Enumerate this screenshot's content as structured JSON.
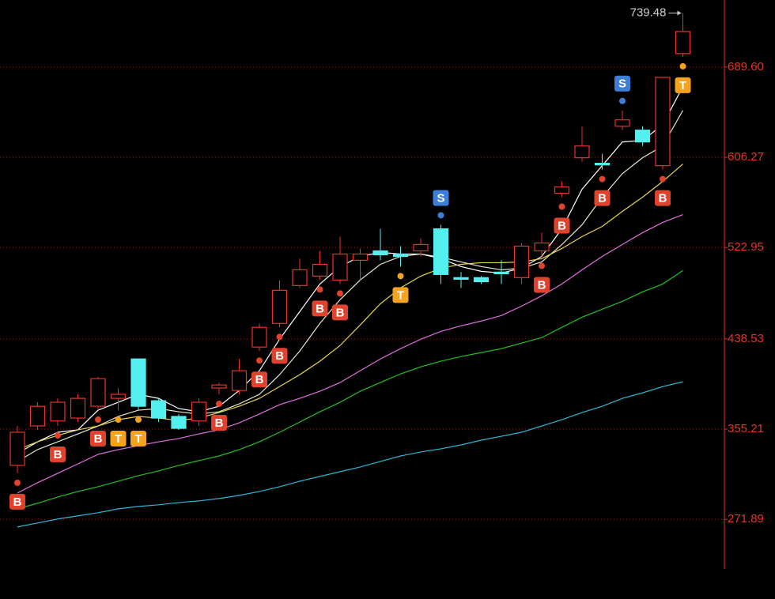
{
  "chart_data": {
    "type": "candlestick",
    "open": [
      321.7,
      358.1,
      362.7,
      365.4,
      376.3,
      383.6,
      420.0,
      381.4,
      366.9,
      362.7,
      393.1,
      390.9,
      431.0,
      452.8,
      487.8,
      496.5,
      492.9,
      511.1,
      519.8,
      516.9,
      519.8,
      540.2,
      495.1,
      495.1,
      500.2,
      495.1,
      519.8,
      573.0,
      605.8,
      600.7,
      634.9,
      631.3,
      598.5,
      702.0
    ],
    "high": [
      358.1,
      380.0,
      383.6,
      387.3,
      403.3,
      393.1,
      420.0,
      383.6,
      369.1,
      383.6,
      398.0,
      420.0,
      452.8,
      492.7,
      512.6,
      519.8,
      533.0,
      522.0,
      540.2,
      524.2,
      531.5,
      543.9,
      500.3,
      496.5,
      511.1,
      526.9,
      536.6,
      584.0,
      634.9,
      609.5,
      649.5,
      634.9,
      680.1,
      739.48
    ],
    "low": [
      314.4,
      354.5,
      358.1,
      361.8,
      372.7,
      372.7,
      372.7,
      361.8,
      354.5,
      358.1,
      387.3,
      387.3,
      427.3,
      449.2,
      485.6,
      492.9,
      489.2,
      492.9,
      511.1,
      505.3,
      514.7,
      489.2,
      485.6,
      489.2,
      489.2,
      489.2,
      514.7,
      569.4,
      602.2,
      594.9,
      631.3,
      616.7,
      594.9,
      699.0
    ],
    "close": [
      352.3,
      376.3,
      380.0,
      383.6,
      401.8,
      387.3,
      376.3,
      365.4,
      355.9,
      380.0,
      396.0,
      409.1,
      449.2,
      483.4,
      502.4,
      507.4,
      516.9,
      516.9,
      516.2,
      514.7,
      525.7,
      498.0,
      493.6,
      491.4,
      498.7,
      524.2,
      527.1,
      578.8,
      616.7,
      599.2,
      640.8,
      620.4,
      680.1,
      722.4
    ],
    "up_color": "#e8322a",
    "down_color": "#54f0f0",
    "signals": [
      "B",
      null,
      "B",
      null,
      "B",
      "T",
      "T",
      null,
      null,
      null,
      "B",
      null,
      "B",
      "B",
      null,
      "B",
      "B",
      null,
      null,
      "T",
      null,
      "S",
      null,
      null,
      null,
      null,
      "B",
      "B",
      null,
      "B",
      "S",
      null,
      "B",
      "T"
    ],
    "signal_colors": {
      "B": "#e0432d",
      "T": "#f5a31e",
      "S": "#3d7fd6"
    },
    "lines": [
      {
        "color": "#ffffff",
        "values": [
          332.7,
          343.5,
          352.3,
          354.5,
          372.7,
          380.0,
          387.3,
          383.6,
          374.2,
          371.2,
          376.3,
          390.9,
          409.1,
          438.2,
          463.7,
          489.2,
          505.3,
          514.7,
          518.4,
          516.9,
          516.9,
          512.6,
          505.3,
          500.9,
          499.4,
          503.8,
          514.7,
          540.2,
          576.7,
          598.5,
          620.4,
          621.8,
          636.4,
          671.4
        ]
      },
      {
        "color": "#e8e8d0",
        "values": [
          325.3,
          336.3,
          343.5,
          350.8,
          358.1,
          366.9,
          372.7,
          374.2,
          371.2,
          369.1,
          371.2,
          378.5,
          387.3,
          405.5,
          427.3,
          452.8,
          474.7,
          492.9,
          507.4,
          514.7,
          516.9,
          514.0,
          509.6,
          505.3,
          502.3,
          503.8,
          509.6,
          525.7,
          543.9,
          569.4,
          591.2,
          605.8,
          616.7,
          649.5
        ]
      },
      {
        "color": "#e8d84a",
        "values": [
          336.3,
          343.5,
          349.4,
          354.5,
          358.1,
          363.9,
          366.9,
          365.4,
          363.2,
          365.4,
          370.5,
          376.3,
          383.6,
          394.5,
          405.5,
          417.9,
          432.4,
          451.4,
          471.0,
          485.6,
          496.5,
          503.8,
          507.4,
          508.9,
          508.9,
          509.6,
          512.6,
          522.0,
          533.0,
          542.4,
          556.3,
          569.4,
          583.9,
          600.0
        ]
      },
      {
        "color": "#e070e0",
        "values": [
          296.2,
          305.7,
          314.4,
          323.1,
          331.9,
          336.3,
          339.9,
          343.5,
          346.5,
          350.8,
          354.5,
          361.0,
          369.1,
          377.8,
          383.6,
          390.2,
          398.2,
          409.1,
          420.0,
          429.5,
          438.2,
          445.5,
          450.6,
          455.0,
          460.1,
          468.8,
          478.3,
          489.2,
          502.3,
          514.7,
          525.7,
          536.6,
          546.1,
          553.3
        ]
      },
      {
        "color": "#22c022",
        "values": [
          281.6,
          286.7,
          292.5,
          297.6,
          302.0,
          307.1,
          312.2,
          316.6,
          321.7,
          326.1,
          330.4,
          336.3,
          343.5,
          352.3,
          361.7,
          371.2,
          380.0,
          390.2,
          398.2,
          406.2,
          412.7,
          417.9,
          422.2,
          425.9,
          429.5,
          434.6,
          439.7,
          449.2,
          458.6,
          465.9,
          473.2,
          482.0,
          489.2,
          501.6
        ]
      },
      {
        "color": "#2ab8d8",
        "values": [
          264.9,
          268.5,
          272.2,
          275.1,
          278.0,
          281.6,
          283.8,
          285.3,
          287.4,
          288.9,
          291.1,
          294.0,
          297.6,
          302.0,
          307.1,
          311.5,
          315.9,
          320.2,
          325.3,
          330.4,
          334.1,
          337.0,
          340.6,
          345.0,
          348.6,
          352.3,
          358.1,
          363.9,
          370.5,
          376.3,
          383.6,
          388.7,
          394.5,
          398.9
        ]
      }
    ],
    "ylim": [
      198.3,
      751.5
    ],
    "yticks": [
      {
        "value": 271.89,
        "label": "271.89"
      },
      {
        "value": 355.21,
        "label": "355.21"
      },
      {
        "value": 438.53,
        "label": "438.53"
      },
      {
        "value": 522.95,
        "label": "522.95"
      },
      {
        "value": 606.27,
        "label": "606.27"
      },
      {
        "value": 689.6,
        "label": "689.60"
      }
    ],
    "grid": true,
    "axis_color": "#e8322a"
  }
}
